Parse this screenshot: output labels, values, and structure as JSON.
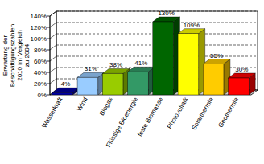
{
  "chart_data": {
    "type": "bar",
    "y_label": "Erwartung der Beschäftigungszahlen 2010 im Vergleich zu 2004",
    "categories": [
      "Wasserkraft",
      "Wind",
      "Biogas",
      "Flüssige Bioenergie",
      "feste Biomasse",
      "Photovoltaik",
      "Solarthermie",
      "Geothermie"
    ],
    "values": [
      4,
      31,
      38,
      41,
      130,
      109,
      55,
      30
    ],
    "value_labels": [
      "4%",
      "31%",
      "38%",
      "41%",
      "130%",
      "109%",
      "55%",
      "30%"
    ],
    "colors": [
      "#0000a0",
      "#99ccff",
      "#99cc00",
      "#339966",
      "#006600",
      "#ffff00",
      "#ffcc00",
      "#ff0000"
    ],
    "ylim": [
      0,
      140
    ],
    "yticks": [
      {
        "value": 0,
        "label": "0%"
      },
      {
        "value": 20,
        "label": "20%"
      },
      {
        "value": 40,
        "label": "40%"
      },
      {
        "value": 60,
        "label": "60%"
      },
      {
        "value": 80,
        "label": "80%"
      },
      {
        "value": 100,
        "label": "100%"
      },
      {
        "value": 120,
        "label": "120%"
      },
      {
        "value": 140,
        "label": "140%"
      }
    ],
    "grid": true,
    "data_labels": true
  }
}
